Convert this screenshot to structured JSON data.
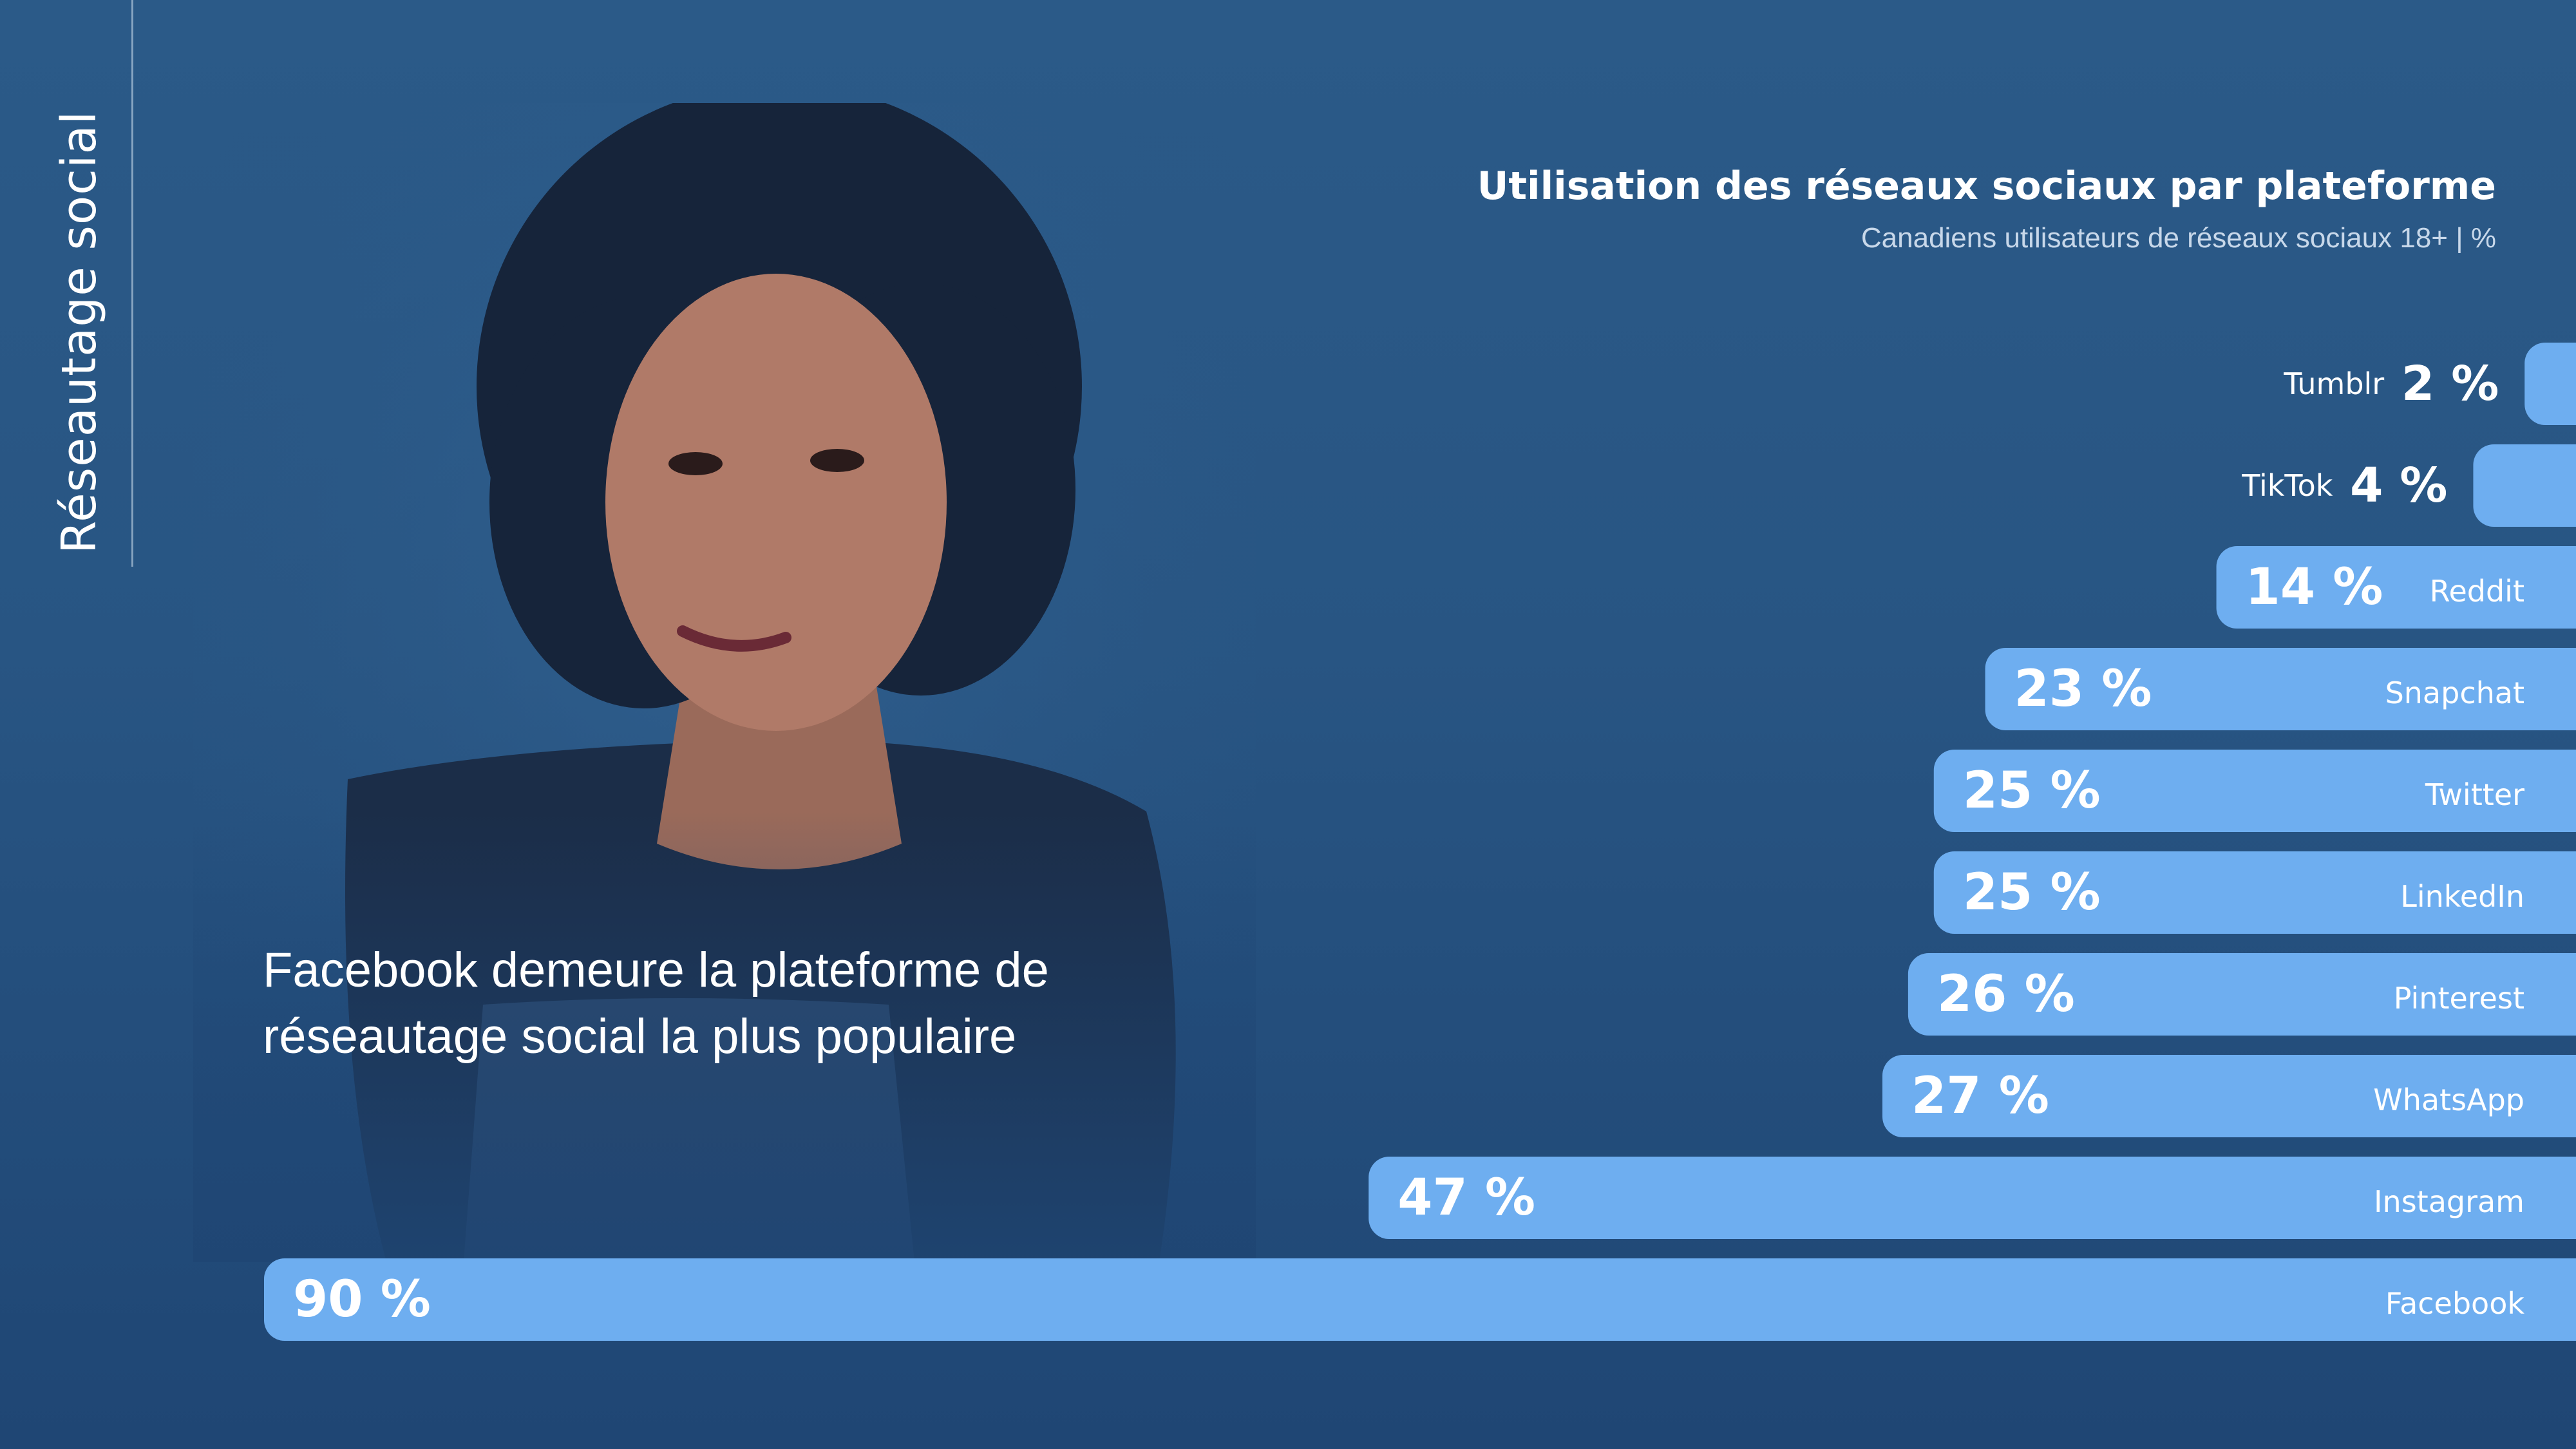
{
  "slide": {
    "section_label": "Réseautage social",
    "headline_line1": "Facebook demeure la plateforme de",
    "headline_line2": "réseautage social la plus populaire"
  },
  "colors": {
    "background": "#285583",
    "bar": "#6eaef0",
    "text": "#ffffff",
    "subtitle": "#c8d8ea"
  },
  "chart_data": {
    "type": "bar",
    "orientation": "horizontal",
    "title": "Utilisation des réseaux sociaux par plateforme",
    "subtitle": "Canadiens utilisateurs de réseaux sociaux 18+ | %",
    "categories": [
      "Tumblr",
      "TikTok",
      "Reddit",
      "Snapchat",
      "Twitter",
      "LinkedIn",
      "Pinterest",
      "WhatsApp",
      "Instagram",
      "Facebook"
    ],
    "values": [
      2,
      4,
      14,
      23,
      25,
      25,
      26,
      27,
      47,
      90
    ],
    "value_labels": [
      "2 %",
      "4 %",
      "14 %",
      "23 %",
      "25 %",
      "25 %",
      "26 %",
      "27 %",
      "47 %",
      "90 %"
    ],
    "unit": "%",
    "xlim": [
      0,
      90
    ],
    "grid": false,
    "legend": "none"
  }
}
